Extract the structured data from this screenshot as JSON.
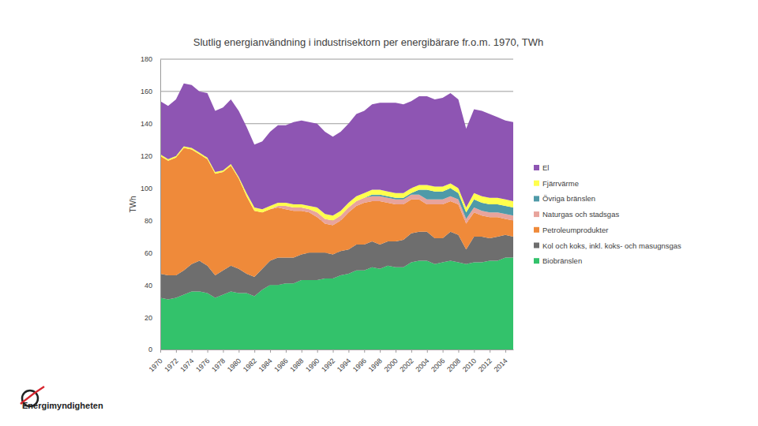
{
  "chart_data": {
    "type": "stacked_area",
    "title": "Slutlig energianvändning i industrisektorn per energibärare fr.o.m. 1970, TWh",
    "y_label": "TWh",
    "annotations": [
      "Energimyndigheten"
    ],
    "stacked": true,
    "grid": true,
    "legend": "right",
    "x": [
      1970,
      1971,
      1972,
      1973,
      1974,
      1975,
      1976,
      1977,
      1978,
      1979,
      1980,
      1981,
      1982,
      1983,
      1984,
      1985,
      1986,
      1987,
      1988,
      1989,
      1990,
      1991,
      1992,
      1993,
      1994,
      1995,
      1996,
      1997,
      1998,
      1999,
      2000,
      2001,
      2002,
      2003,
      2004,
      2005,
      2006,
      2007,
      2008,
      2009,
      2010,
      2011,
      2012,
      2013,
      2014,
      2015
    ],
    "xlim": [
      1970,
      2015
    ],
    "xticks": [
      1970,
      1972,
      1974,
      1976,
      1978,
      1980,
      1982,
      1984,
      1986,
      1988,
      1990,
      1992,
      1994,
      1996,
      1998,
      2000,
      2002,
      2004,
      2006,
      2008,
      2010,
      2012,
      2014
    ],
    "ylim": [
      0,
      180
    ],
    "yticks": [
      0,
      20,
      40,
      60,
      80,
      100,
      120,
      140,
      160,
      180
    ],
    "series": [
      {
        "name": "Biobränslen",
        "color": "#33c26b",
        "values": [
          32,
          31,
          32,
          34,
          36,
          36,
          35,
          32,
          34,
          36,
          35,
          35,
          33,
          37,
          40,
          40,
          41,
          41,
          43,
          43,
          43,
          44,
          44,
          46,
          47,
          49,
          49,
          51,
          50,
          52,
          51,
          51,
          54,
          55,
          55,
          53,
          54,
          55,
          54,
          53,
          54,
          54,
          55,
          55,
          57,
          57
        ]
      },
      {
        "name": "Kol och koks, inkl. koks- och masugnsgas",
        "color": "#6e6e6e",
        "values": [
          15,
          15,
          14,
          15,
          17,
          19,
          17,
          14,
          15,
          16,
          15,
          12,
          12,
          13,
          15,
          17,
          16,
          16,
          16,
          17,
          17,
          16,
          15,
          15,
          15,
          16,
          16,
          16,
          15,
          15,
          16,
          17,
          18,
          18,
          18,
          16,
          15,
          18,
          17,
          9,
          16,
          16,
          14,
          15,
          14,
          13
        ]
      },
      {
        "name": "Petroleumprodukter",
        "color": "#ef8a3a",
        "values": [
          73,
          71,
          73,
          76,
          71,
          66,
          66,
          63,
          61,
          62,
          56,
          48,
          41,
          35,
          32,
          31,
          30,
          29,
          27,
          25,
          22,
          18,
          18,
          19,
          23,
          24,
          26,
          25,
          27,
          24,
          23,
          22,
          21,
          20,
          17,
          21,
          21,
          19,
          19,
          16,
          15,
          13,
          13,
          12,
          10,
          10
        ]
      },
      {
        "name": "Naturgas och stadsgas",
        "color": "#e8a49c",
        "values": [
          0,
          0,
          0,
          0,
          0,
          0,
          0,
          0,
          0,
          0,
          0,
          0,
          0,
          0,
          0,
          1,
          2,
          2,
          2,
          2,
          3,
          3,
          3,
          3,
          3,
          3,
          3,
          3,
          3,
          3,
          3,
          3,
          3,
          3,
          3,
          3,
          3,
          3,
          3,
          3,
          3,
          3,
          3,
          3,
          3,
          3
        ]
      },
      {
        "name": "Övriga bränslen",
        "color": "#4f9aa8",
        "values": [
          0,
          0,
          0,
          0,
          0,
          0,
          0,
          0,
          0,
          0,
          0,
          0,
          0,
          0,
          0,
          0,
          0,
          0,
          0,
          0,
          0,
          0,
          0,
          0,
          0,
          0,
          0,
          1,
          1,
          1,
          1,
          1,
          1,
          3,
          6,
          5,
          5,
          5,
          4,
          4,
          5,
          5,
          5,
          5,
          5,
          5
        ]
      },
      {
        "name": "Fjärrvärme",
        "color": "#ffff4d",
        "values": [
          1,
          1,
          1,
          1,
          1,
          1,
          1,
          1,
          1,
          1,
          1,
          2,
          2,
          2,
          2,
          2,
          2,
          2,
          2,
          2,
          3,
          3,
          3,
          3,
          3,
          3,
          3,
          3,
          3,
          3,
          3,
          3,
          3,
          3,
          3,
          3,
          3,
          3,
          3,
          3,
          4,
          4,
          4,
          4,
          4,
          4
        ]
      },
      {
        "name": "El",
        "color": "#8e55b3",
        "values": [
          33,
          33,
          35,
          39,
          39,
          38,
          40,
          38,
          39,
          40,
          41,
          41,
          39,
          42,
          46,
          48,
          48,
          51,
          52,
          52,
          52,
          51,
          49,
          49,
          49,
          51,
          51,
          53,
          54,
          55,
          56,
          55,
          54,
          55,
          55,
          54,
          55,
          56,
          55,
          49,
          52,
          53,
          52,
          50,
          49,
          49
        ]
      }
    ]
  }
}
